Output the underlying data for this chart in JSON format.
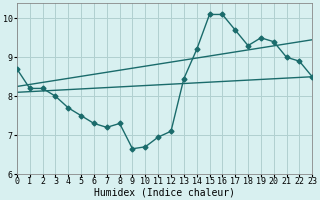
{
  "line1_x": [
    0,
    1,
    2,
    3,
    4,
    5,
    6,
    7,
    8,
    9,
    10,
    11,
    12,
    13,
    14,
    15,
    16,
    17,
    18,
    19,
    20,
    21,
    22,
    23
  ],
  "line1_y": [
    8.7,
    8.2,
    8.2,
    8.0,
    7.7,
    7.5,
    7.3,
    7.2,
    7.3,
    6.65,
    6.7,
    6.95,
    7.1,
    8.45,
    9.2,
    10.1,
    10.1,
    9.7,
    9.3,
    9.5,
    9.4,
    9.0,
    8.9,
    8.5
  ],
  "line2_x": [
    0,
    23
  ],
  "line2_y": [
    8.1,
    8.5
  ],
  "line3_x": [
    0,
    23
  ],
  "line3_y": [
    8.25,
    9.45
  ],
  "line_color": "#1a6b6b",
  "bg_color": "#d8f0f0",
  "grid_color": "#b0d0d0",
  "xlabel": "Humidex (Indice chaleur)",
  "xlim": [
    0,
    23
  ],
  "ylim": [
    6,
    10.4
  ],
  "yticks": [
    6,
    7,
    8,
    9,
    10
  ],
  "xtick_labels": [
    "0",
    "1",
    "2",
    "3",
    "4",
    "5",
    "6",
    "7",
    "8",
    "9",
    "10",
    "11",
    "12",
    "13",
    "14",
    "15",
    "16",
    "17",
    "18",
    "19",
    "20",
    "21",
    "22",
    "23"
  ],
  "marker": "D",
  "markersize": 2.5,
  "linewidth": 1.0,
  "tick_fontsize": 6.0,
  "xlabel_fontsize": 7.0
}
